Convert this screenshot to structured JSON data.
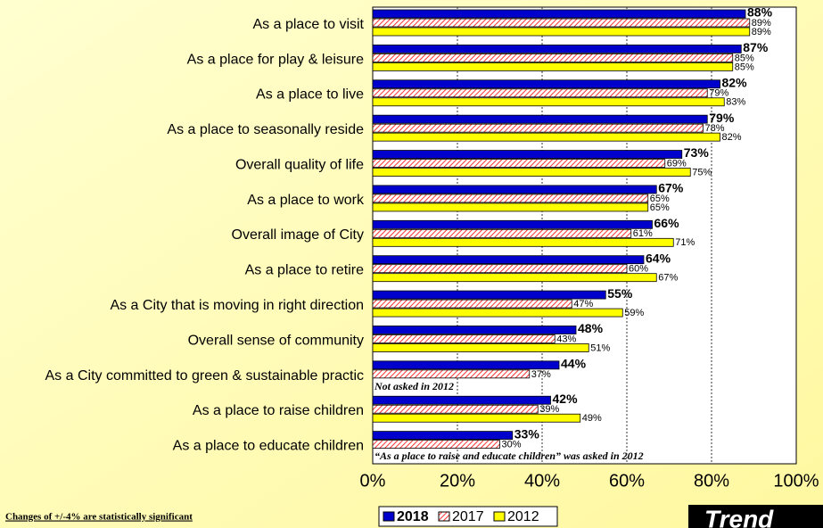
{
  "chart_data": {
    "type": "barh",
    "categories": [
      "As a place to visit",
      "As a place for play & leisure",
      "As a place to live",
      "As a place to seasonally reside",
      "Overall quality of life",
      "As a place to work",
      "Overall image of City",
      "As a place to retire",
      "As a City that is moving in right direction",
      "Overall sense of community",
      "As a City committed to green & sustainable practic",
      "As a place to raise children",
      "As a place to educate children"
    ],
    "series": [
      {
        "name": "2018",
        "color": "#0000cc",
        "values": [
          88,
          87,
          82,
          79,
          73,
          67,
          66,
          64,
          55,
          48,
          44,
          42,
          33
        ],
        "value_labels": [
          "88%",
          "87%",
          "82%",
          "79%",
          "73%",
          "67%",
          "66%",
          "64%",
          "55%",
          "48%",
          "44%",
          "42%",
          "33%"
        ]
      },
      {
        "name": "2017",
        "color": "#ff3333",
        "pattern": "hatch",
        "values": [
          89,
          85,
          79,
          78,
          69,
          65,
          61,
          60,
          47,
          43,
          37,
          39,
          30
        ],
        "value_labels": [
          "89%",
          "85%",
          "79%",
          "78%",
          "69%",
          "65%",
          "61%",
          "60%",
          "47%",
          "43%",
          "37%",
          "39%",
          "30%"
        ]
      },
      {
        "name": "2012",
        "color": "#ffff00",
        "values": [
          89,
          85,
          83,
          82,
          75,
          65,
          71,
          67,
          59,
          51,
          null,
          49,
          null
        ],
        "value_labels": [
          "89%",
          "85%",
          "83%",
          "82%",
          "75%",
          "65%",
          "71%",
          "67%",
          "59%",
          "51%",
          null,
          "49%",
          null
        ]
      }
    ],
    "xlim": [
      0,
      100
    ],
    "xticks": [
      {
        "value": 0,
        "label": "0%"
      },
      {
        "value": 20,
        "label": "20%"
      },
      {
        "value": 40,
        "label": "40%"
      },
      {
        "value": 60,
        "label": "60%"
      },
      {
        "value": 80,
        "label": "80%"
      },
      {
        "value": 100,
        "label": "100%"
      }
    ],
    "grid": true,
    "annotations": [
      "Not asked in 2012",
      "“As a place to raise and educate children” was asked in 2012",
      "Changes of  +/-4% are statistically significant",
      "Trend"
    ]
  }
}
